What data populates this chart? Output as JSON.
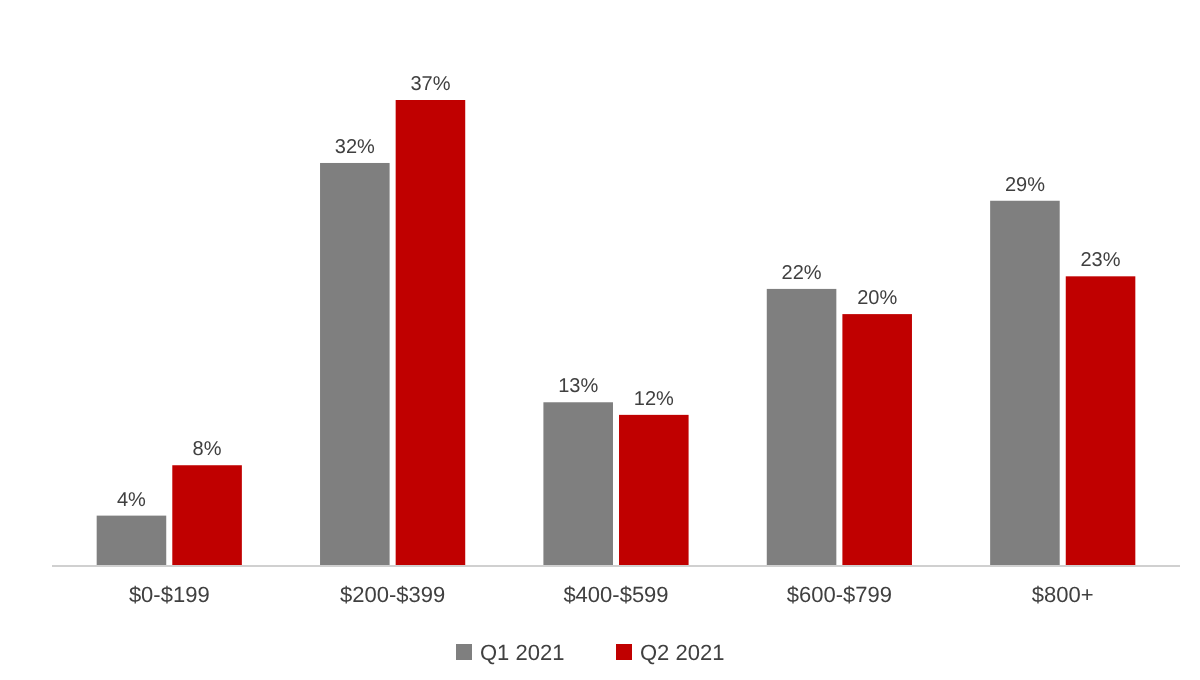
{
  "chart_data": {
    "type": "bar",
    "categories": [
      "$0-$199",
      "$200-$399",
      "$400-$599",
      "$600-$799",
      "$800+"
    ],
    "series": [
      {
        "name": "Q1 2021",
        "color": "#7f7f7f",
        "values": [
          4,
          32,
          13,
          22,
          29
        ],
        "value_labels": [
          "4%",
          "32%",
          "13%",
          "22%",
          "29%"
        ]
      },
      {
        "name": "Q2 2021",
        "color": "#c00000",
        "values": [
          8,
          37,
          12,
          20,
          23
        ],
        "value_labels": [
          "8%",
          "37%",
          "12%",
          "20%",
          "23%"
        ]
      }
    ],
    "legend": "bottom"
  }
}
